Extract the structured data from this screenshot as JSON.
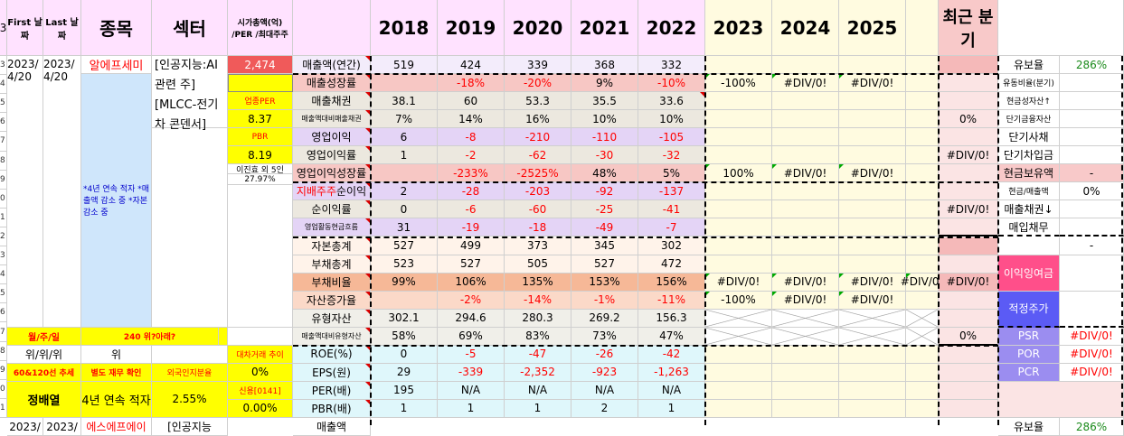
{
  "headers": {
    "first_date": "First 날짜",
    "last_date": "Last 날짜",
    "stock": "종목",
    "sector": "섹터",
    "market_cap": "시가총액(억) /PER /최대주주",
    "years": [
      "2018",
      "2019",
      "2020",
      "2021",
      "2022",
      "2023",
      "2024",
      "2025"
    ],
    "recent": "최근 분기"
  },
  "row_numbers": [
    "3",
    "4",
    "5",
    "6",
    "7",
    "8",
    "9",
    "0",
    "1",
    "2",
    "3",
    "4",
    "5",
    "6",
    "7",
    "8",
    "9",
    "0",
    "1"
  ],
  "company": {
    "first_date": "2023/ 4/20",
    "last_date": "2023/ 4/20",
    "name": "알에프세미",
    "sector": "[인공지능:AI 관련 주][MLCC-전기차 콘덴서]",
    "notes": "*4년 연속 적자 *매출액 감소 중 *자본 감소 중",
    "market_cap": "2,474",
    "sector_per_label": "업종PER",
    "sector_per": "8.37",
    "pbr_label": "PBR",
    "pbr": "8.19",
    "major_holder": "이진효 외 5인",
    "major_holder_pct": "27.97%",
    "cycle_label": "월/주/일",
    "cycle_value": "240 위?아래?",
    "position": "위/위/위",
    "position2": "위",
    "trend_label": "60&120선 추세",
    "finance_check": "별도 재무 확인",
    "foreign_ratio_label": "외국인지분율",
    "foreign_ratio": "2.55%",
    "lending_label": "대차거래 추이",
    "lending_value": "0%",
    "credit_label": "신용[0141]",
    "credit_value": "0.00%",
    "analyst": "정배열",
    "loss_note": "4년 연속 적자",
    "next_row": {
      "a": "2023/",
      "b": "2023/",
      "name": "에스에프에이",
      "sector": "[인공지능",
      "metric": "매출액"
    }
  },
  "metrics": [
    {
      "label": "매출액(연간)",
      "values": [
        "519",
        "424",
        "339",
        "368",
        "332"
      ],
      "f": [
        "",
        "",
        "",
        ""
      ],
      "recent": ""
    },
    {
      "label": "매출성장률",
      "values": [
        "",
        "-18%",
        "-20%",
        "9%",
        "-10%"
      ],
      "f": [
        "-100%",
        "#DIV/0!",
        "#DIV/0!",
        ""
      ],
      "recent": ""
    },
    {
      "label": "매출채권",
      "values": [
        "38.1",
        "60",
        "53.3",
        "35.5",
        "33.6"
      ],
      "f": [
        "",
        "",
        "",
        ""
      ],
      "recent": ""
    },
    {
      "label": "매출액대비매출채권",
      "values": [
        "7%",
        "14%",
        "16%",
        "10%",
        "10%"
      ],
      "f": [
        "",
        "",
        "",
        ""
      ],
      "recent": "0%"
    },
    {
      "label": "영업이익",
      "values": [
        "6",
        "-8",
        "-210",
        "-110",
        "-105"
      ],
      "f": [
        "",
        "",
        "",
        ""
      ],
      "recent": ""
    },
    {
      "label": "영업이익률",
      "values": [
        "1",
        "-2",
        "-62",
        "-30",
        "-32"
      ],
      "f": [
        "",
        "",
        "",
        ""
      ],
      "recent": "#DIV/0!"
    },
    {
      "label": "영업이익성장률",
      "values": [
        "",
        "-233%",
        "-2525%",
        "48%",
        "5%"
      ],
      "f": [
        "100%",
        "#DIV/0!",
        "#DIV/0!",
        ""
      ],
      "recent": ""
    },
    {
      "label": "지배주주순이익",
      "values": [
        "2",
        "-28",
        "-203",
        "-92",
        "-137"
      ],
      "f": [
        "",
        "",
        "",
        ""
      ],
      "recent": ""
    },
    {
      "label": "순이익률",
      "values": [
        "0",
        "-6",
        "-60",
        "-25",
        "-41"
      ],
      "f": [
        "",
        "",
        "",
        ""
      ],
      "recent": "#DIV/0!"
    },
    {
      "label": "영업활동현금흐름",
      "values": [
        "31",
        "-19",
        "-18",
        "-49",
        "-7"
      ],
      "f": [
        "",
        "",
        "",
        ""
      ],
      "recent": ""
    },
    {
      "label": "자본총계",
      "values": [
        "527",
        "499",
        "373",
        "345",
        "302"
      ],
      "f": [
        "",
        "",
        "",
        ""
      ],
      "recent": ""
    },
    {
      "label": "부채총계",
      "values": [
        "523",
        "527",
        "505",
        "527",
        "472"
      ],
      "f": [
        "",
        "",
        "",
        ""
      ],
      "recent": ""
    },
    {
      "label": "부채비율",
      "values": [
        "99%",
        "106%",
        "135%",
        "153%",
        "156%"
      ],
      "f": [
        "#DIV/0!",
        "#DIV/0!",
        "#DIV/0!",
        "#DIV/0!"
      ],
      "recent": "#DIV/0!"
    },
    {
      "label": "자산증가율",
      "values": [
        "",
        "-2%",
        "-14%",
        "-1%",
        "-11%"
      ],
      "f": [
        "-100%",
        "#DIV/0!",
        "#DIV/0!",
        ""
      ],
      "recent": ""
    },
    {
      "label": "유형자산",
      "values": [
        "302.1",
        "294.6",
        "280.3",
        "269.2",
        "156.3"
      ],
      "f": [
        "",
        "",
        "",
        ""
      ],
      "recent": ""
    },
    {
      "label": "매출액대비유형자산",
      "values": [
        "58%",
        "69%",
        "83%",
        "73%",
        "47%"
      ],
      "f": [
        "",
        "",
        "",
        ""
      ],
      "recent": "0%"
    },
    {
      "label": "ROE(%)",
      "values": [
        "0",
        "-5",
        "-47",
        "-26",
        "-42"
      ],
      "f": [
        "",
        "",
        "",
        ""
      ],
      "recent": ""
    },
    {
      "label": "EPS(원)",
      "values": [
        "29",
        "-339",
        "-2,352",
        "-923",
        "-1,263"
      ],
      "f": [
        "",
        "",
        "",
        ""
      ],
      "recent": ""
    },
    {
      "label": "PER(배)",
      "values": [
        "195",
        "N/A",
        "N/A",
        "N/A",
        "N/A"
      ],
      "f": [
        "",
        "",
        "",
        ""
      ],
      "recent": ""
    },
    {
      "label": "PBR(배)",
      "values": [
        "1",
        "1",
        "1",
        "2",
        "1"
      ],
      "f": [
        "",
        "",
        "",
        ""
      ],
      "recent": ""
    }
  ],
  "side_panel": [
    {
      "label": "유보율",
      "value": "286%"
    },
    {
      "label": "유동비율(분기)",
      "value": ""
    },
    {
      "label": "현금성자산↑",
      "value": ""
    },
    {
      "label": "단기금융자산",
      "value": ""
    },
    {
      "label": "단기사채",
      "value": ""
    },
    {
      "label": "단기차입금",
      "value": ""
    },
    {
      "label": "현금보유액",
      "value": "-"
    },
    {
      "label": "현금/매출액",
      "value": "0%"
    },
    {
      "label": "매출채권↓",
      "value": ""
    },
    {
      "label": "매입채무",
      "value": ""
    },
    {
      "label": "",
      "value": "-"
    },
    {
      "label": "이익잉여금",
      "value": ""
    },
    {
      "label": "적정주가",
      "value": ""
    },
    {
      "label": "PSR",
      "value": "#DIV/0!"
    },
    {
      "label": "POR",
      "value": "#DIV/0!"
    },
    {
      "label": "PCR",
      "value": "#DIV/0!"
    }
  ],
  "next_row_side": {
    "label": "유보율",
    "value": "286%"
  },
  "colors": {
    "header_pink": "#ffe2ff",
    "red": "#ff0000",
    "cream": "#fffbe0",
    "light_blue": "#cfe6fb",
    "yellow": "#ffff00",
    "psr_purple": "#9b8df0",
    "blue_btn": "#5b5bf5",
    "pink_btn": "#ff4f8a"
  }
}
